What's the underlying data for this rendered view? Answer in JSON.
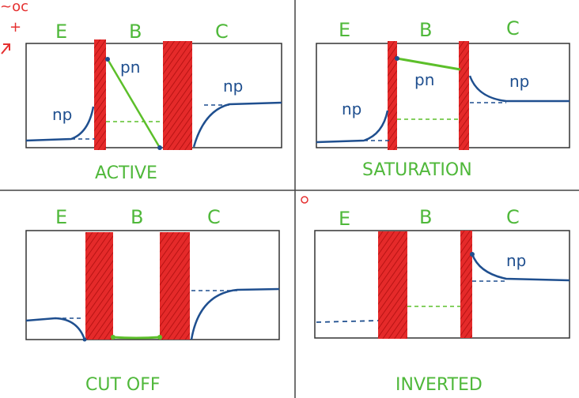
{
  "colors": {
    "region_label": "#4fb83a",
    "hole_curve": "#1f4f8f",
    "electron_curve": "#5cbf2a",
    "depletion": "#e52a2a",
    "box": "#333333",
    "divider": "#444444",
    "margin_mark": "#e53030"
  },
  "margin_marks": {
    "top_left_text": "~oc",
    "plus_sign": "+"
  },
  "panels": [
    {
      "id": "active",
      "regions": {
        "emitter": "E",
        "base": "B",
        "collector": "C"
      },
      "title": "ACTIVE",
      "labels": {
        "emitter_minority": "np",
        "base_minority": "pn",
        "collector_minority": "np"
      }
    },
    {
      "id": "saturation",
      "regions": {
        "emitter": "E",
        "base": "B",
        "collector": "C"
      },
      "title": "SATURATION",
      "labels": {
        "emitter_minority": "np",
        "base_minority": "pn",
        "collector_minority": "np"
      }
    },
    {
      "id": "cutoff",
      "regions": {
        "emitter": "E",
        "base": "B",
        "collector": "C"
      },
      "title": "CUT OFF"
    },
    {
      "id": "inverted",
      "regions": {
        "emitter": "E",
        "base": "B",
        "collector": "C"
      },
      "title": "INVERTED",
      "labels": {
        "collector_minority": "np"
      }
    }
  ]
}
